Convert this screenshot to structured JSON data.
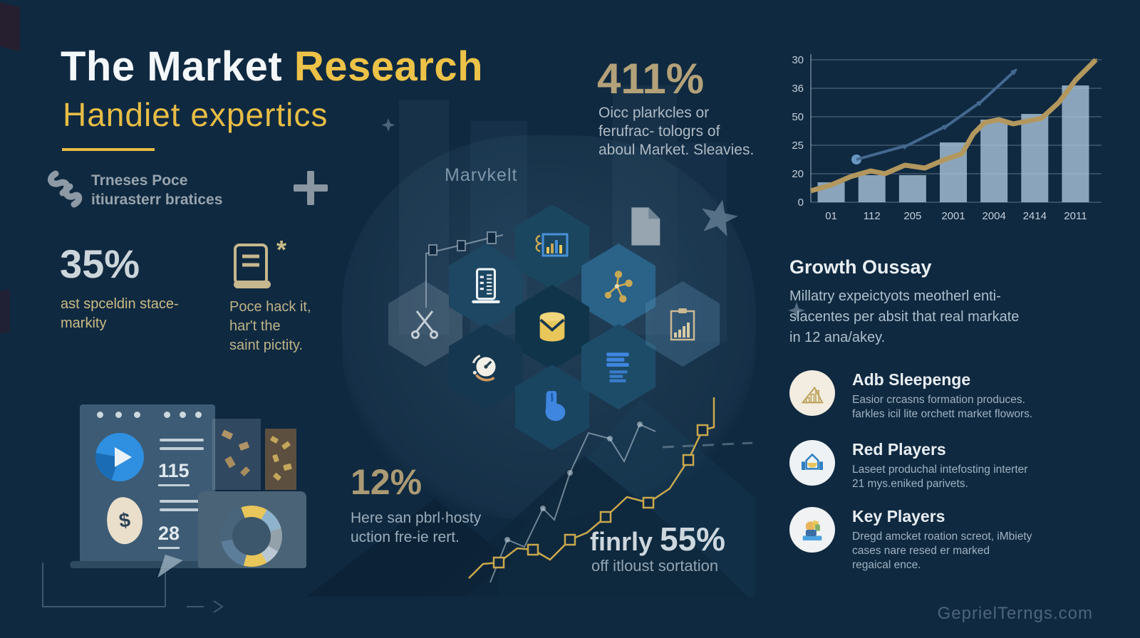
{
  "palette": {
    "background": "#0f2940",
    "accent_yellow": "#edc248",
    "tan": "#b3a179",
    "text_light": "#aebac4",
    "icon_blue": "#3f86e0",
    "white": "#f4f7f9"
  },
  "header": {
    "title_white": "The Market",
    "title_accent": "Research",
    "subtitle": "Handiet expertics",
    "tagline_line1": "Trneses Poce",
    "tagline_line2": "itiurasterr bratices"
  },
  "stats": {
    "stat_35": {
      "value": "35%",
      "lines": [
        "ast spceldin stace-",
        "markity"
      ]
    },
    "doc_note": {
      "asterisk": "*",
      "lines": [
        "Poce hack it,",
        "har't the",
        "saint pictity."
      ]
    },
    "stat_411": {
      "value": "411%",
      "lines": [
        "Oicc plarkcles or",
        "ferufrac- tologrs of",
        "aboul Market. Sleavies."
      ]
    },
    "stat_12": {
      "value": "12%",
      "lines": [
        "Here san pbrl·hosty",
        "uction fre-ie rert."
      ]
    },
    "stat_55": {
      "prefix": "finrly ",
      "value": "55%",
      "caption": "off itloust sortation"
    }
  },
  "center": {
    "label": "Marvkelt"
  },
  "chart_data": {
    "type": "combo",
    "title": "",
    "xlabel": "",
    "ylabel": "",
    "grid": true,
    "legend": false,
    "y_ticks": [
      "30",
      "36",
      "50",
      "25",
      "20",
      "0"
    ],
    "x_ticks": [
      "01",
      "112",
      "205",
      "2001",
      "2004",
      "2414",
      "2011"
    ],
    "series": [
      {
        "name": "bars",
        "type": "bar",
        "values_pct": [
          14,
          19,
          19,
          42,
          58,
          62,
          82
        ],
        "color": "#a9c4d9"
      },
      {
        "name": "gold-trend",
        "type": "line",
        "points_pct": [
          [
            0,
            8
          ],
          [
            7,
            12
          ],
          [
            14,
            18
          ],
          [
            21,
            22
          ],
          [
            26,
            20
          ],
          [
            33,
            26
          ],
          [
            40,
            24
          ],
          [
            47,
            30
          ],
          [
            53,
            34
          ],
          [
            57,
            48
          ],
          [
            61,
            56
          ],
          [
            66,
            58
          ],
          [
            71,
            55
          ],
          [
            76,
            57
          ],
          [
            81,
            59
          ],
          [
            87,
            70
          ],
          [
            93,
            86
          ],
          [
            100,
            100
          ]
        ],
        "color": "#b2975e"
      },
      {
        "name": "blue-trend",
        "type": "line",
        "points_pct": [
          [
            16,
            30
          ],
          [
            34,
            40
          ],
          [
            48,
            54
          ],
          [
            60,
            71
          ],
          [
            72,
            93
          ]
        ],
        "color": "#44688f"
      }
    ]
  },
  "growth": {
    "heading": "Growth Oussay",
    "lines": [
      "Millatry expeictyots  meotherl enti-",
      "slacentes per absit that real markate",
      "in 12 ana/akey."
    ]
  },
  "players": [
    {
      "icon": "bar-growth-icon",
      "title": "Adb Sleepenge",
      "lines": [
        "Easior crcasns formation produces.",
        "farkles icil lite orchett market flowors."
      ]
    },
    {
      "icon": "house-icon",
      "title": "Red Players",
      "lines": [
        "Laseet produchal intefosting interter",
        "21 mys.eniked parivets."
      ]
    },
    {
      "icon": "person-icon",
      "title": "Key Players",
      "lines": [
        "Dregd amcket roation screot, iMbiety",
        "cases nare resed er marked",
        "regaical ence."
      ]
    }
  ],
  "window_card": {
    "num1": "115",
    "num2": "28",
    "currency": "$"
  },
  "hex_icons": [
    "scissors-icon",
    "server-icon",
    "chart-document-icon",
    "file-icon",
    "database-icon",
    "network-icon",
    "gauge-icon",
    "hand-icon",
    "document-lines-icon",
    "clipboard-chart-icon"
  ],
  "footer": {
    "watermark": "GeprielTerngs.com"
  }
}
